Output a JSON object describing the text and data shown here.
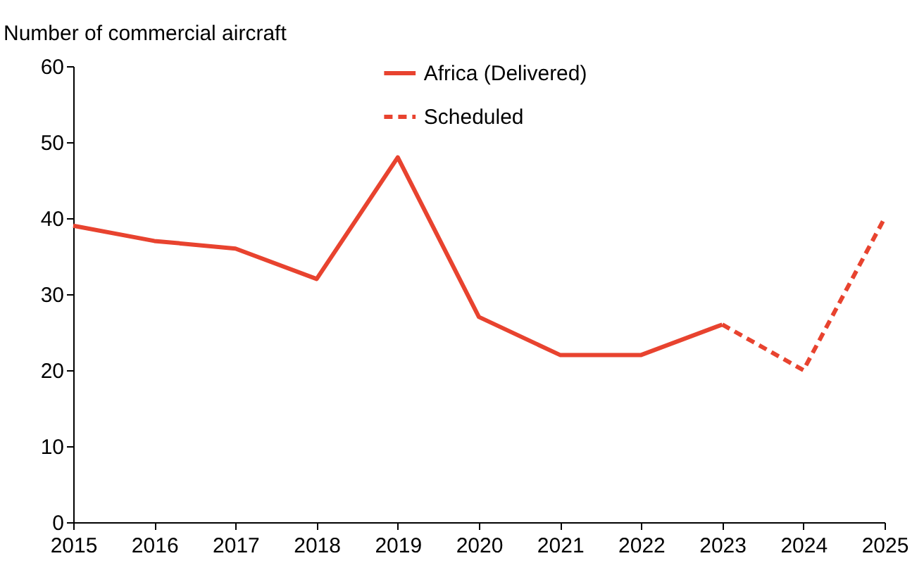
{
  "chart_data": {
    "type": "line",
    "ylabel": "Number of commercial aircraft",
    "series": [
      {
        "name": "Africa (Delivered)",
        "color": "#e8432f",
        "line_style": "solid",
        "x": [
          2015,
          2016,
          2017,
          2018,
          2019,
          2020,
          2021,
          2022,
          2023
        ],
        "values": [
          39,
          37,
          36,
          32,
          48,
          27,
          22,
          22,
          26
        ]
      },
      {
        "name": "Scheduled",
        "color": "#e8432f",
        "line_style": "dashed",
        "x": [
          2023,
          2024,
          2025
        ],
        "values": [
          26,
          20,
          40
        ]
      }
    ],
    "xlim": [
      2015,
      2025
    ],
    "xticks": [
      2015,
      2016,
      2017,
      2018,
      2019,
      2020,
      2021,
      2022,
      2023,
      2024,
      2025
    ],
    "ylim": [
      0,
      60
    ],
    "yticks": [
      0,
      10,
      20,
      30,
      40,
      50,
      60
    ],
    "grid": false,
    "legend": "top right",
    "marker": "none"
  }
}
